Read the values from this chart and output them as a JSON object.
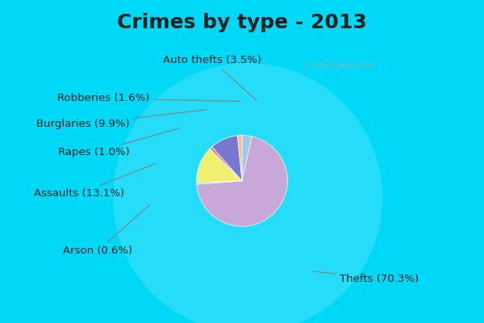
{
  "title": "Crimes by type - 2013",
  "labels": [
    "Thefts",
    "Assaults",
    "Burglaries",
    "Auto thefts",
    "Robberies",
    "Rapes",
    "Arson"
  ],
  "values": [
    70.3,
    13.1,
    9.9,
    3.5,
    1.6,
    1.0,
    0.6
  ],
  "colors": [
    "#c8a8d8",
    "#f0f070",
    "#7878d0",
    "#a0c8e8",
    "#f0c090",
    "#f07878",
    "#90d890"
  ],
  "background_top": "#00d8f8",
  "background_main": "#d0e8d0",
  "title_fontsize": 18,
  "label_fontsize": 9.5
}
